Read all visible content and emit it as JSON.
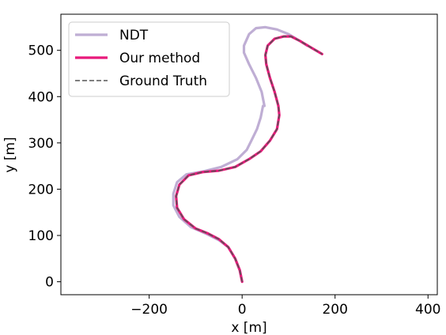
{
  "chart_data": {
    "type": "line",
    "xlabel": "x [m]",
    "ylabel": "y [m]",
    "xlim": [
      -390,
      420
    ],
    "ylim": [
      -28,
      578
    ],
    "xticks": [
      -200,
      0,
      200,
      400
    ],
    "xtick_labels": [
      "−200",
      "0",
      "200",
      "400"
    ],
    "yticks": [
      0,
      100,
      200,
      300,
      400,
      500
    ],
    "ytick_labels": [
      "0",
      "100",
      "200",
      "300",
      "400",
      "500"
    ],
    "grid": false,
    "legend_position": "top-left",
    "series": [
      {
        "name": "NDT",
        "color": "#bfaed4",
        "style": "solid",
        "x": [
          0,
          -5,
          -15,
          -30,
          -50,
          -80,
          -110,
          -135,
          -148,
          -148,
          -140,
          -120,
          -85,
          -45,
          -10,
          10,
          20,
          32,
          40,
          45,
          48,
          42,
          30,
          15,
          4,
          4,
          15,
          30,
          50,
          75,
          100,
          125,
          140
        ],
        "y": [
          0,
          25,
          50,
          75,
          90,
          105,
          118,
          140,
          165,
          190,
          215,
          232,
          238,
          248,
          265,
          285,
          305,
          330,
          355,
          380,
          380,
          410,
          440,
          470,
          495,
          510,
          535,
          548,
          550,
          545,
          535,
          520,
          510
        ]
      },
      {
        "name": "Our method",
        "color": "#e8197a",
        "style": "solid",
        "x": [
          0,
          -5,
          -15,
          -30,
          -50,
          -75,
          -100,
          -125,
          -140,
          -142,
          -135,
          -115,
          -85,
          -50,
          -15,
          15,
          40,
          60,
          75,
          80,
          78,
          70,
          60,
          52,
          50,
          55,
          70,
          90,
          105,
          125,
          150,
          172
        ],
        "y": [
          0,
          25,
          50,
          75,
          92,
          105,
          115,
          135,
          160,
          185,
          210,
          230,
          237,
          240,
          248,
          265,
          282,
          305,
          330,
          360,
          380,
          410,
          440,
          470,
          490,
          510,
          525,
          530,
          530,
          520,
          505,
          492
        ]
      },
      {
        "name": "Ground Truth",
        "color": "#555555",
        "style": "dashed",
        "x": [
          0,
          -5,
          -15,
          -30,
          -50,
          -75,
          -100,
          -125,
          -140,
          -142,
          -135,
          -115,
          -85,
          -50,
          -15,
          15,
          40,
          60,
          75,
          80,
          78,
          70,
          60,
          52,
          50,
          55,
          70,
          90,
          105,
          125,
          150,
          172
        ],
        "y": [
          0,
          25,
          50,
          75,
          92,
          105,
          115,
          135,
          160,
          185,
          210,
          230,
          237,
          240,
          248,
          265,
          282,
          305,
          330,
          360,
          380,
          410,
          440,
          470,
          490,
          510,
          525,
          530,
          530,
          520,
          505,
          492
        ]
      }
    ]
  }
}
